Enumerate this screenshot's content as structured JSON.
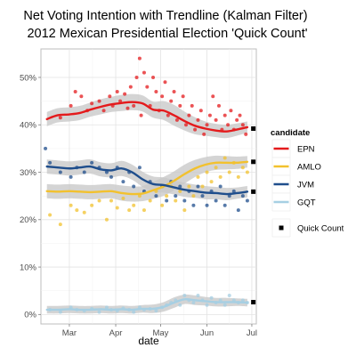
{
  "chart_data": {
    "type": "line",
    "title_lines": [
      "Net Voting Intention with Trendline (Kalman Filter)",
      " 2012 Mexican Presidential Election 'Quick Count'"
    ],
    "xlabel": "date",
    "ylabel": "",
    "x_ticks": [
      {
        "value": "2012-03-01",
        "label": "Mar"
      },
      {
        "value": "2012-04-01",
        "label": "Apr"
      },
      {
        "value": "2012-05-01",
        "label": "May"
      },
      {
        "value": "2012-06-01",
        "label": "Jun"
      },
      {
        "value": "2012-07-01",
        "label": "Jul"
      }
    ],
    "y_ticks": [
      {
        "value": 0,
        "label": "0%"
      },
      {
        "value": 10,
        "label": "10%"
      },
      {
        "value": 20,
        "label": "20%"
      },
      {
        "value": 30,
        "label": "30%"
      },
      {
        "value": 40,
        "label": "40%"
      },
      {
        "value": 50,
        "label": "50%"
      }
    ],
    "xlim": [
      "2012-02-11",
      "2012-07-04"
    ],
    "ylim": [
      -2,
      56
    ],
    "grid": true,
    "legend_title": "candidate",
    "legend_position": "right",
    "quick_count_label": "Quick Count",
    "series": [
      {
        "name": "EPN",
        "color": "#e41a1c",
        "x": [
          "2012-02-15",
          "2012-02-22",
          "2012-03-01",
          "2012-03-08",
          "2012-03-15",
          "2012-03-22",
          "2012-03-29",
          "2012-04-05",
          "2012-04-12",
          "2012-04-19",
          "2012-04-26",
          "2012-05-03",
          "2012-05-10",
          "2012-05-17",
          "2012-05-24",
          "2012-05-31",
          "2012-06-07",
          "2012-06-14",
          "2012-06-21",
          "2012-06-28"
        ],
        "values": [
          41.2,
          42,
          42.2,
          42.5,
          43.2,
          43.8,
          44.3,
          44.6,
          44.8,
          44.5,
          43.2,
          43,
          42,
          40.8,
          39.8,
          39.2,
          38.8,
          38.6,
          39,
          39.5
        ],
        "band": [
          1.5,
          1.5,
          1.5,
          1.5,
          1.5,
          1.6,
          1.6,
          1.7,
          1.7,
          1.7,
          1.7,
          2,
          2.2,
          2,
          1.8,
          1.5,
          1.4,
          1.4,
          1.3,
          1.2
        ],
        "points": [
          [
            "2012-02-24",
            41.5
          ],
          [
            "2012-03-02",
            44
          ],
          [
            "2012-03-05",
            47
          ],
          [
            "2012-03-09",
            46
          ],
          [
            "2012-03-13",
            43
          ],
          [
            "2012-03-16",
            44.5
          ],
          [
            "2012-03-21",
            45
          ],
          [
            "2012-03-24",
            43
          ],
          [
            "2012-03-28",
            46
          ],
          [
            "2012-03-30",
            44
          ],
          [
            "2012-04-02",
            47
          ],
          [
            "2012-04-04",
            45
          ],
          [
            "2012-04-07",
            46.5
          ],
          [
            "2012-04-09",
            43.5
          ],
          [
            "2012-04-11",
            48
          ],
          [
            "2012-04-13",
            44
          ],
          [
            "2012-04-15",
            50
          ],
          [
            "2012-04-17",
            54
          ],
          [
            "2012-04-18",
            42
          ],
          [
            "2012-04-20",
            51
          ],
          [
            "2012-04-22",
            48
          ],
          [
            "2012-04-24",
            44
          ],
          [
            "2012-04-26",
            50
          ],
          [
            "2012-04-28",
            47
          ],
          [
            "2012-04-30",
            43
          ],
          [
            "2012-05-02",
            46
          ],
          [
            "2012-05-04",
            49
          ],
          [
            "2012-05-06",
            42
          ],
          [
            "2012-05-08",
            45
          ],
          [
            "2012-05-10",
            47
          ],
          [
            "2012-05-12",
            41
          ],
          [
            "2012-05-14",
            44
          ],
          [
            "2012-05-16",
            46
          ],
          [
            "2012-05-18",
            40
          ],
          [
            "2012-05-20",
            42
          ],
          [
            "2012-05-22",
            44
          ],
          [
            "2012-05-24",
            39
          ],
          [
            "2012-05-26",
            41
          ],
          [
            "2012-05-28",
            43
          ],
          [
            "2012-05-30",
            38
          ],
          [
            "2012-06-01",
            40
          ],
          [
            "2012-06-03",
            42
          ],
          [
            "2012-06-05",
            46
          ],
          [
            "2012-06-07",
            41
          ],
          [
            "2012-06-09",
            44
          ],
          [
            "2012-06-11",
            39
          ],
          [
            "2012-06-13",
            42
          ],
          [
            "2012-06-15",
            40
          ],
          [
            "2012-06-17",
            43
          ],
          [
            "2012-06-19",
            39
          ],
          [
            "2012-06-21",
            41
          ],
          [
            "2012-06-23",
            42
          ],
          [
            "2012-06-25",
            40
          ],
          [
            "2012-06-27",
            38
          ]
        ],
        "quick_count": 39.2
      },
      {
        "name": "AMLO",
        "color": "#f2c12e",
        "x": [
          "2012-02-15",
          "2012-02-22",
          "2012-03-01",
          "2012-03-08",
          "2012-03-15",
          "2012-03-22",
          "2012-03-29",
          "2012-04-05",
          "2012-04-12",
          "2012-04-19",
          "2012-04-26",
          "2012-05-03",
          "2012-05-10",
          "2012-05-17",
          "2012-05-24",
          "2012-05-31",
          "2012-06-07",
          "2012-06-14",
          "2012-06-21",
          "2012-06-28"
        ],
        "values": [
          26,
          25.9,
          26,
          25.9,
          25.8,
          25.9,
          26,
          25.6,
          25.4,
          25.5,
          26.2,
          27,
          28.2,
          29.6,
          30.8,
          31.6,
          32,
          32,
          32,
          32.2
        ],
        "band": [
          1.5,
          1.5,
          1.5,
          1.5,
          1.5,
          1.5,
          1.5,
          1.6,
          1.6,
          1.6,
          1.8,
          2,
          2,
          2,
          1.8,
          1.6,
          1.5,
          1.4,
          1.3,
          1.2
        ],
        "points": [
          [
            "2012-02-17",
            21
          ],
          [
            "2012-02-24",
            19
          ],
          [
            "2012-03-02",
            23
          ],
          [
            "2012-03-06",
            22
          ],
          [
            "2012-03-11",
            21.5
          ],
          [
            "2012-03-16",
            23
          ],
          [
            "2012-03-21",
            24
          ],
          [
            "2012-03-26",
            20
          ],
          [
            "2012-03-29",
            24
          ],
          [
            "2012-04-02",
            22.5
          ],
          [
            "2012-04-06",
            24.5
          ],
          [
            "2012-04-10",
            22
          ],
          [
            "2012-04-13",
            23
          ],
          [
            "2012-04-17",
            25
          ],
          [
            "2012-04-20",
            22
          ],
          [
            "2012-04-24",
            24
          ],
          [
            "2012-04-28",
            26
          ],
          [
            "2012-05-02",
            23
          ],
          [
            "2012-05-05",
            25
          ],
          [
            "2012-05-08",
            27
          ],
          [
            "2012-05-11",
            24
          ],
          [
            "2012-05-14",
            26
          ],
          [
            "2012-05-17",
            22
          ],
          [
            "2012-05-20",
            27
          ],
          [
            "2012-05-23",
            25
          ],
          [
            "2012-05-26",
            29
          ],
          [
            "2012-05-29",
            27
          ],
          [
            "2012-06-01",
            30
          ],
          [
            "2012-06-04",
            28
          ],
          [
            "2012-06-07",
            31
          ],
          [
            "2012-06-10",
            29
          ],
          [
            "2012-06-13",
            33
          ],
          [
            "2012-06-16",
            30
          ],
          [
            "2012-06-19",
            32
          ],
          [
            "2012-06-22",
            29
          ],
          [
            "2012-06-25",
            31
          ],
          [
            "2012-06-28",
            30
          ]
        ],
        "quick_count": 32.2
      },
      {
        "name": "JVM",
        "color": "#1f4e8c",
        "x": [
          "2012-02-15",
          "2012-02-22",
          "2012-03-01",
          "2012-03-08",
          "2012-03-15",
          "2012-03-22",
          "2012-03-29",
          "2012-04-05",
          "2012-04-12",
          "2012-04-19",
          "2012-04-26",
          "2012-05-03",
          "2012-05-10",
          "2012-05-17",
          "2012-05-24",
          "2012-05-31",
          "2012-06-07",
          "2012-06-14",
          "2012-06-21",
          "2012-06-28"
        ],
        "values": [
          31.2,
          31,
          30.8,
          31,
          31.2,
          30.6,
          30.4,
          30.8,
          30,
          28.5,
          27.5,
          27.3,
          26.8,
          26.3,
          26,
          25.7,
          25.6,
          25.4,
          25.6,
          25.9
        ],
        "band": [
          1.5,
          1.5,
          1.5,
          1.5,
          1.5,
          1.5,
          1.5,
          1.6,
          1.6,
          1.6,
          1.6,
          1.6,
          1.5,
          1.5,
          1.4,
          1.4,
          1.3,
          1.3,
          1.2,
          1.2
        ],
        "points": [
          [
            "2012-02-14",
            35
          ],
          [
            "2012-02-17",
            32
          ],
          [
            "2012-02-24",
            30
          ],
          [
            "2012-03-02",
            29
          ],
          [
            "2012-03-06",
            31
          ],
          [
            "2012-03-11",
            30
          ],
          [
            "2012-03-16",
            32
          ],
          [
            "2012-03-21",
            31
          ],
          [
            "2012-03-26",
            30
          ],
          [
            "2012-03-29",
            29
          ],
          [
            "2012-04-02",
            31
          ],
          [
            "2012-04-06",
            28
          ],
          [
            "2012-04-10",
            30
          ],
          [
            "2012-04-13",
            27
          ],
          [
            "2012-04-17",
            31
          ],
          [
            "2012-04-20",
            26
          ],
          [
            "2012-04-24",
            28
          ],
          [
            "2012-04-28",
            25
          ],
          [
            "2012-05-02",
            27
          ],
          [
            "2012-05-05",
            24
          ],
          [
            "2012-05-08",
            28
          ],
          [
            "2012-05-11",
            25
          ],
          [
            "2012-05-14",
            27
          ],
          [
            "2012-05-17",
            24
          ],
          [
            "2012-05-20",
            26
          ],
          [
            "2012-05-23",
            23
          ],
          [
            "2012-05-26",
            27
          ],
          [
            "2012-05-29",
            25
          ],
          [
            "2012-06-01",
            23
          ],
          [
            "2012-06-04",
            26
          ],
          [
            "2012-06-07",
            24
          ],
          [
            "2012-06-10",
            27
          ],
          [
            "2012-06-13",
            23
          ],
          [
            "2012-06-16",
            25
          ],
          [
            "2012-06-19",
            26
          ],
          [
            "2012-06-22",
            22
          ],
          [
            "2012-06-25",
            25
          ],
          [
            "2012-06-28",
            24
          ]
        ],
        "quick_count": 25.9
      },
      {
        "name": "GQT",
        "color": "#a6cfe3",
        "x": [
          "2012-02-15",
          "2012-02-22",
          "2012-03-01",
          "2012-03-08",
          "2012-03-15",
          "2012-03-22",
          "2012-03-29",
          "2012-04-05",
          "2012-04-12",
          "2012-04-19",
          "2012-04-26",
          "2012-05-03",
          "2012-05-10",
          "2012-05-17",
          "2012-05-24",
          "2012-05-31",
          "2012-06-07",
          "2012-06-14",
          "2012-06-21",
          "2012-06-28"
        ],
        "values": [
          1,
          1,
          1.1,
          1,
          1,
          1.1,
          1,
          1.1,
          1,
          1.2,
          1.2,
          1.6,
          2.5,
          3.2,
          3,
          2.8,
          2.6,
          2.6,
          2.6,
          2.5
        ],
        "band": [
          0.8,
          0.8,
          0.8,
          0.8,
          0.8,
          0.8,
          0.8,
          0.8,
          0.8,
          0.8,
          0.9,
          1,
          1.1,
          1,
          1,
          0.9,
          0.9,
          0.9,
          0.8,
          0.8
        ],
        "points": [
          [
            "2012-02-17",
            1
          ],
          [
            "2012-02-24",
            0.5
          ],
          [
            "2012-03-02",
            1.5
          ],
          [
            "2012-03-06",
            1
          ],
          [
            "2012-03-11",
            0.8
          ],
          [
            "2012-03-16",
            1.2
          ],
          [
            "2012-03-21",
            0.5
          ],
          [
            "2012-03-26",
            1.5
          ],
          [
            "2012-03-29",
            1
          ],
          [
            "2012-04-02",
            0.8
          ],
          [
            "2012-04-06",
            1.3
          ],
          [
            "2012-04-10",
            1
          ],
          [
            "2012-04-13",
            0.5
          ],
          [
            "2012-04-17",
            1.5
          ],
          [
            "2012-04-20",
            1
          ],
          [
            "2012-04-24",
            1.2
          ],
          [
            "2012-04-28",
            0.8
          ],
          [
            "2012-05-02",
            1.5
          ],
          [
            "2012-05-05",
            2
          ],
          [
            "2012-05-08",
            2.5
          ],
          [
            "2012-05-11",
            3
          ],
          [
            "2012-05-14",
            2
          ],
          [
            "2012-05-17",
            4
          ],
          [
            "2012-05-20",
            3
          ],
          [
            "2012-05-23",
            2.5
          ],
          [
            "2012-05-26",
            4
          ],
          [
            "2012-05-29",
            3
          ],
          [
            "2012-06-01",
            2
          ],
          [
            "2012-06-04",
            3.5
          ],
          [
            "2012-06-07",
            2.5
          ],
          [
            "2012-06-10",
            3
          ],
          [
            "2012-06-13",
            2
          ],
          [
            "2012-06-16",
            4
          ],
          [
            "2012-06-19",
            3
          ],
          [
            "2012-06-22",
            2.5
          ],
          [
            "2012-06-25",
            3
          ],
          [
            "2012-06-28",
            2.5
          ]
        ],
        "quick_count": 2.6
      }
    ]
  }
}
